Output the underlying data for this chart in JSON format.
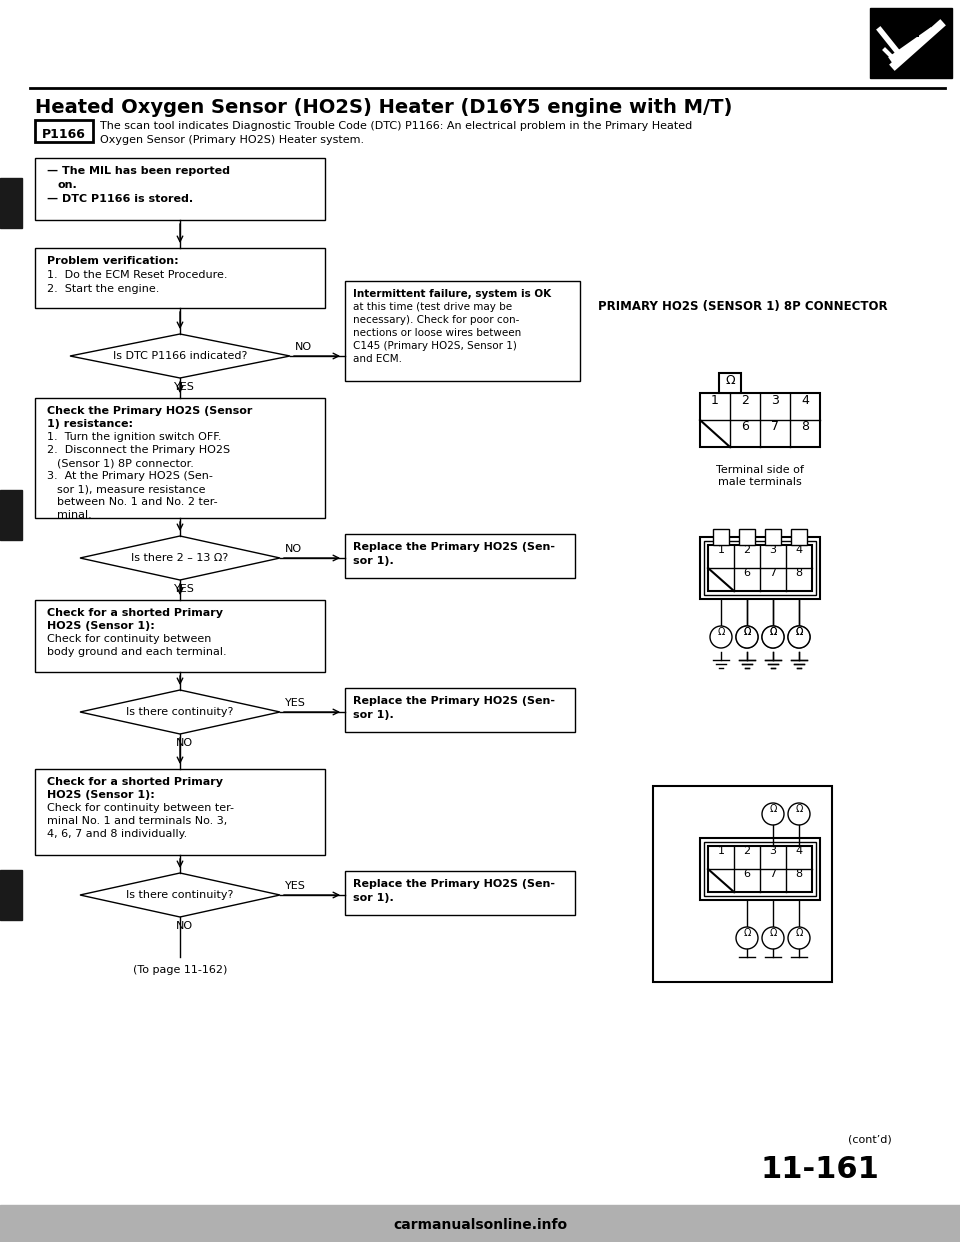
{
  "title": "Heated Oxygen Sensor (HO2S) Heater (D16Y5 engine with M/T)",
  "dtc_code": "P1166",
  "dtc_text_line1": "The scan tool indicates Diagnostic Trouble Code (DTC) P1166: An electrical problem in the Primary Heated",
  "dtc_text_line2": "Oxygen Sensor (Primary HO2S) Heater system.",
  "page_number": "11-161",
  "cont_text": "(cont’d)",
  "bg_color": "#ffffff",
  "connector_title": "PRIMARY HO2S (SENSOR 1) 8P CONNECTOR",
  "terminal_label": "Terminal side of\nmale terminals"
}
